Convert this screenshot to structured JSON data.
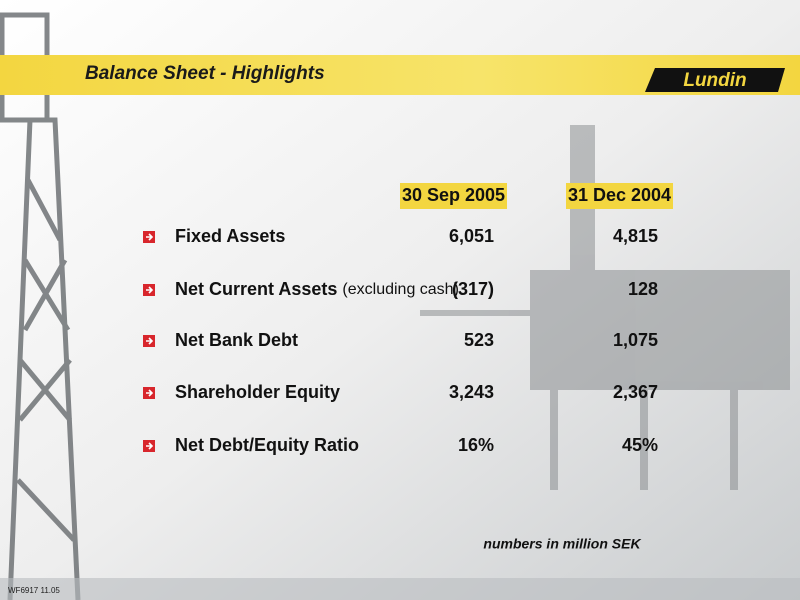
{
  "header": {
    "title": "Balance Sheet - Highlights",
    "logo": "Lundin"
  },
  "table": {
    "columns": [
      "30 Sep 2005",
      "31 Dec 2004"
    ],
    "rows": [
      {
        "label": "Fixed Assets",
        "values": [
          "6,051",
          "4,815"
        ]
      },
      {
        "label": "Net Current Assets",
        "note": "(excluding cash)",
        "values": [
          "(317)",
          "128"
        ]
      },
      {
        "label": "Net Bank Debt",
        "values": [
          "523",
          "1,075"
        ]
      },
      {
        "label": "Shareholder Equity",
        "values": [
          "3,243",
          "2,367"
        ]
      },
      {
        "label": "Net Debt/Equity Ratio",
        "values": [
          "16%",
          "45%"
        ]
      }
    ],
    "footnote": "numbers in million SEK"
  },
  "footer": {
    "code": "WF6917 11.05"
  }
}
